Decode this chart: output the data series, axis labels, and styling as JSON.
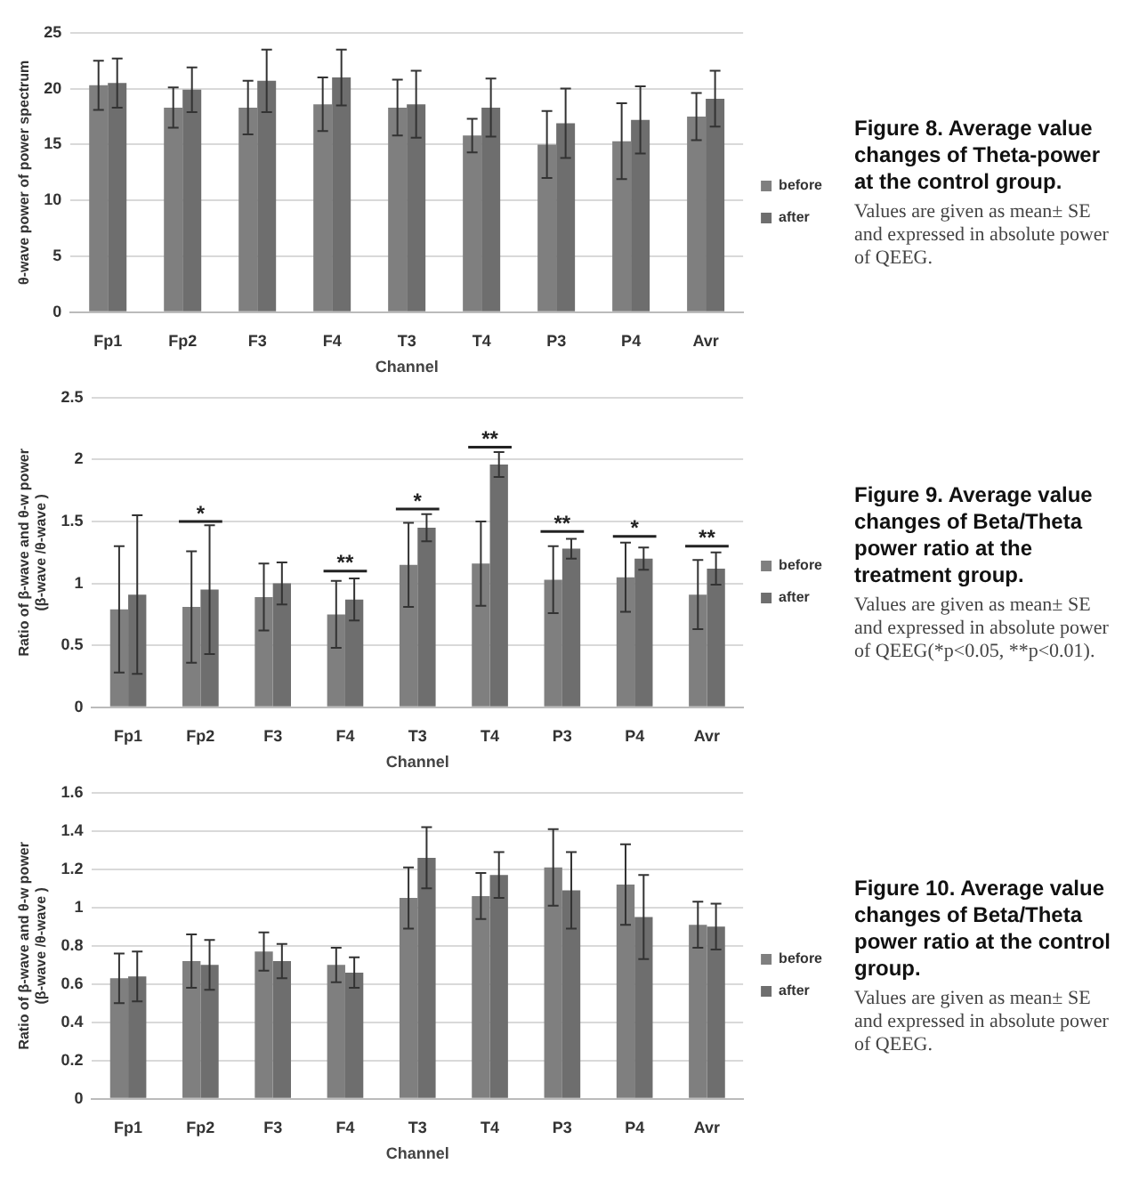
{
  "chart_data": [
    {
      "type": "bar",
      "annotations": [
        "Figure 8. Average value changes of Theta-power at the control group.",
        "Values are given as mean± SE and expressed in absolute power of QEEG."
      ],
      "xlabel": "Channel",
      "ylabel": "θ-wave power of power spectrum",
      "categories": [
        "Fp1",
        "Fp2",
        "F3",
        "F4",
        "T3",
        "T4",
        "P3",
        "P4",
        "Avr"
      ],
      "series": [
        {
          "name": "before",
          "color": "#7f7f7f",
          "values": [
            20.3,
            18.3,
            18.3,
            18.6,
            18.3,
            15.8,
            15.0,
            15.3,
            17.5
          ],
          "errors": [
            2.2,
            1.8,
            2.4,
            2.4,
            2.5,
            1.5,
            3.0,
            3.4,
            2.1
          ]
        },
        {
          "name": "after",
          "color": "#6e6e6e",
          "values": [
            20.5,
            19.9,
            20.7,
            21.0,
            18.6,
            18.3,
            16.9,
            17.2,
            19.1
          ],
          "errors": [
            2.2,
            2.0,
            2.8,
            2.5,
            3.0,
            2.6,
            3.1,
            3.0,
            2.5
          ]
        }
      ],
      "ylim": [
        0,
        25
      ],
      "yticks": [
        0,
        5,
        10,
        15,
        20,
        25
      ],
      "grid": "y",
      "legend": "right"
    },
    {
      "type": "bar",
      "xlabel": "Channel",
      "ylabel": "Ratio of β-wave and θ-w power\n(β-wave /θ-wave )",
      "categories": [
        "Fp1",
        "Fp2",
        "F3",
        "F4",
        "T3",
        "T4",
        "P3",
        "P4",
        "Avr"
      ],
      "series": [
        {
          "name": "before",
          "color": "#7f7f7f",
          "values": [
            0.79,
            0.81,
            0.89,
            0.75,
            1.15,
            1.16,
            1.03,
            1.05,
            0.91
          ],
          "errors": [
            0.51,
            0.45,
            0.27,
            0.27,
            0.34,
            0.34,
            0.27,
            0.28,
            0.28
          ]
        },
        {
          "name": "after",
          "color": "#6e6e6e",
          "values": [
            0.91,
            0.95,
            1.0,
            0.87,
            1.45,
            1.96,
            1.28,
            1.2,
            1.12
          ],
          "errors": [
            0.64,
            0.52,
            0.17,
            0.17,
            0.11,
            0.1,
            0.08,
            0.09,
            0.13
          ]
        }
      ],
      "ylim": [
        0,
        2.5
      ],
      "yticks": [
        0,
        0.5,
        1,
        1.5,
        2,
        2.5
      ],
      "grid": "y",
      "legend": "right",
      "annotations": [
        "Figure 9. Average value changes of Beta/Theta power ratio at the treatment group.",
        "Values are given as mean± SE and expressed in absolute power of QEEG(*p<0.05, **p<0.01).",
        {
          "text": "*",
          "x": "Fp2",
          "y": 1.5
        },
        {
          "text": "**",
          "x": "F4",
          "y": 1.1
        },
        {
          "text": "*",
          "x": "T3",
          "y": 1.6
        },
        {
          "text": "**",
          "x": "T4",
          "y": 2.1
        },
        {
          "text": "**",
          "x": "P3",
          "y": 1.42
        },
        {
          "text": "*",
          "x": "P4",
          "y": 1.38
        },
        {
          "text": "**",
          "x": "Avr",
          "y": 1.3
        }
      ]
    },
    {
      "type": "bar",
      "annotations": [
        "Figure 10. Average value changes of Beta/Theta power ratio at the control group.",
        "Values are given as mean± SE and expressed in absolute power of QEEG."
      ],
      "xlabel": "Channel",
      "ylabel": "Ratio of β-wave and θ-w power\n(β-wave /θ-wave )",
      "categories": [
        "Fp1",
        "Fp2",
        "F3",
        "F4",
        "T3",
        "T4",
        "P3",
        "P4",
        "Avr"
      ],
      "series": [
        {
          "name": "before",
          "color": "#7f7f7f",
          "values": [
            0.63,
            0.72,
            0.77,
            0.7,
            1.05,
            1.06,
            1.21,
            1.12,
            0.91
          ],
          "errors": [
            0.13,
            0.14,
            0.1,
            0.09,
            0.16,
            0.12,
            0.2,
            0.21,
            0.12
          ]
        },
        {
          "name": "after",
          "color": "#6e6e6e",
          "values": [
            0.64,
            0.7,
            0.72,
            0.66,
            1.26,
            1.17,
            1.09,
            0.95,
            0.9
          ],
          "errors": [
            0.13,
            0.13,
            0.09,
            0.08,
            0.16,
            0.12,
            0.2,
            0.22,
            0.12
          ]
        }
      ],
      "ylim": [
        0,
        1.6
      ],
      "yticks": [
        0,
        0.2,
        0.4,
        0.6,
        0.8,
        1,
        1.2,
        1.4,
        1.6
      ],
      "grid": "y",
      "legend": "right"
    }
  ]
}
